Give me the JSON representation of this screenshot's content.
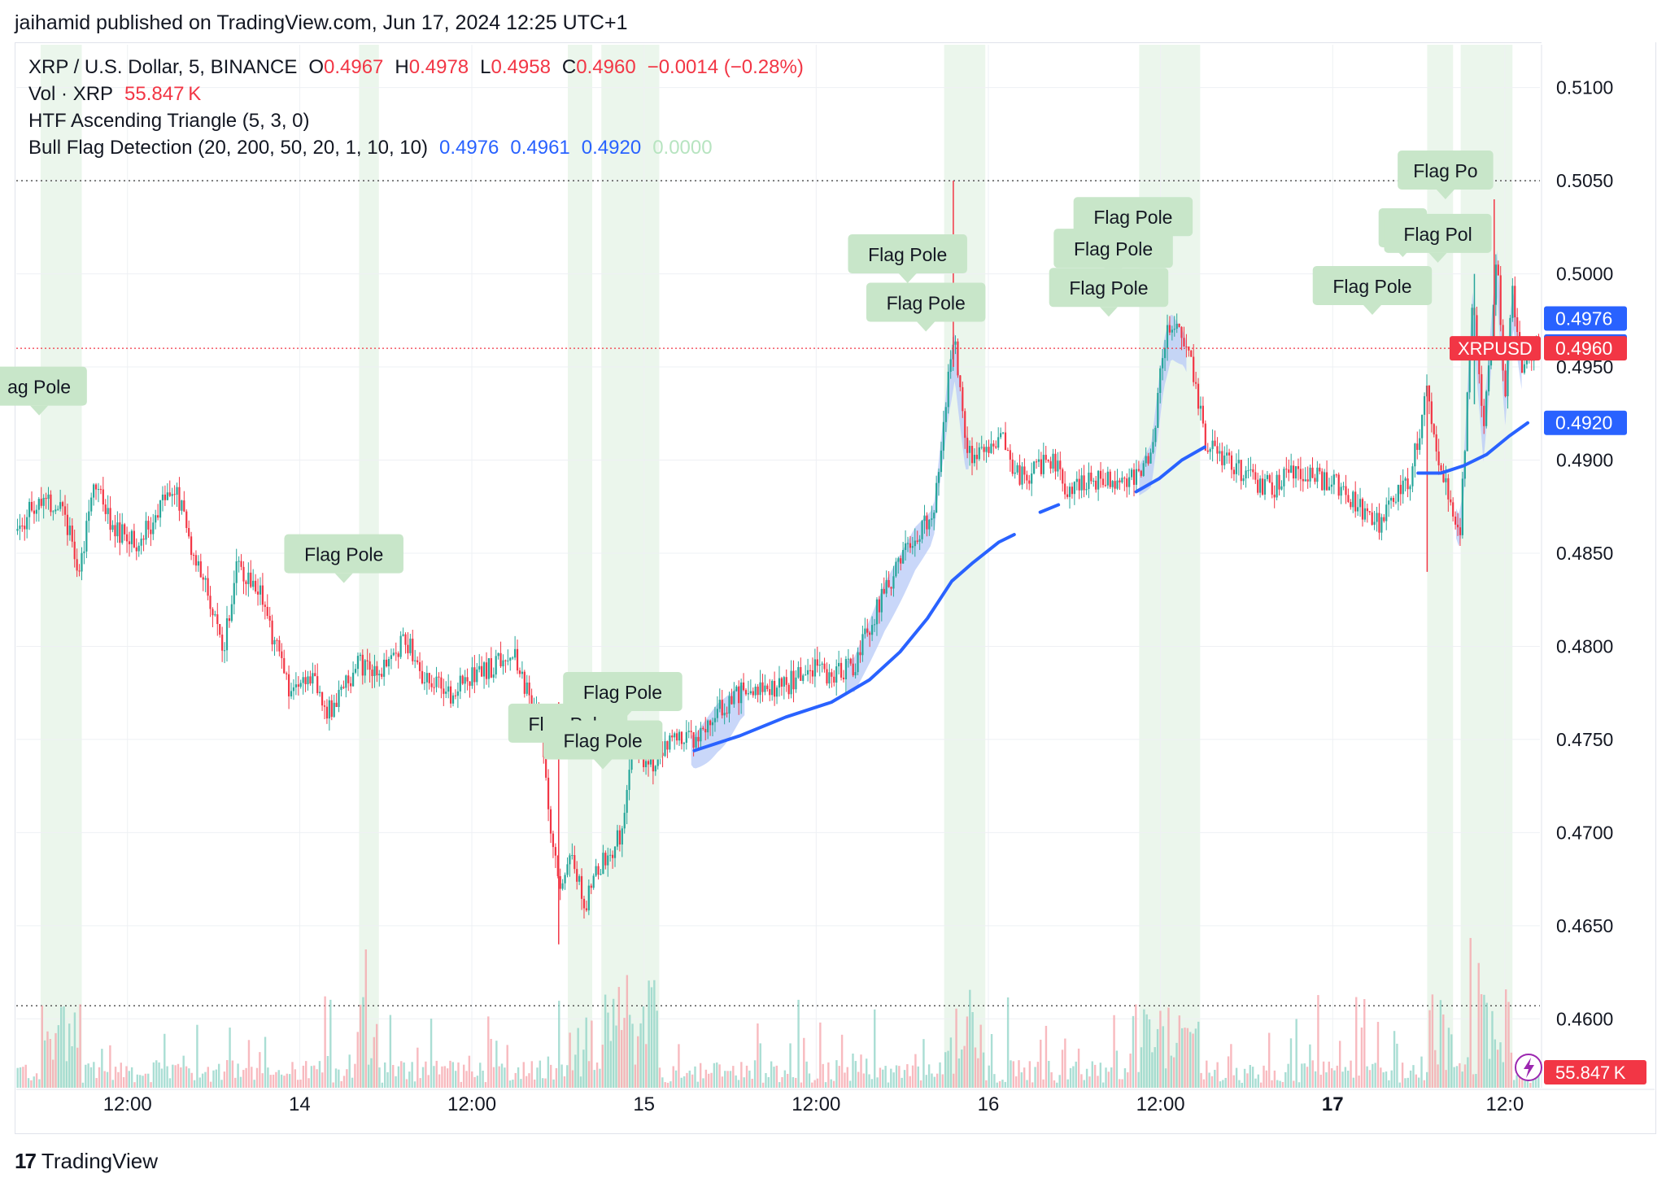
{
  "header": {
    "publish_line": "jaihamid published on TradingView.com, Jun 17, 2024 12:25 UTC+1"
  },
  "legend": {
    "symbol": "XRP / U.S. Dollar, 5, BINANCE",
    "o_label": "O",
    "o_value": "0.4967",
    "h_label": "H",
    "h_value": "0.4978",
    "l_label": "L",
    "l_value": "0.4958",
    "c_label": "C",
    "c_value": "0.4960",
    "change": "−0.0014 (−0.28%)",
    "vol_label": "Vol · XRP",
    "vol_value": "55.847 K",
    "indicator1": "HTF Ascending Triangle (5, 3, 0)",
    "indicator2": "Bull Flag Detection (20, 200, 50, 20, 1, 10, 10)",
    "ind2_v1": "0.4976",
    "ind2_v2": "0.4961",
    "ind2_v3": "0.4920",
    "ind2_v4": "0.0000"
  },
  "footer": {
    "brand": "TradingView",
    "brand_mark": "17"
  },
  "colors": {
    "up": "#26a69a",
    "down": "#f23645",
    "ma": "#2962ff",
    "zone": "#e8f5e9",
    "label": "#c8e6c9",
    "fill": "#bbcdf7"
  },
  "chart_data": {
    "type": "candlestick",
    "symbol": "XRPUSD",
    "interval": "5",
    "y_ticks": [
      0.46,
      0.465,
      0.47,
      0.475,
      0.48,
      0.485,
      0.49,
      0.495,
      0.5,
      0.505,
      0.51
    ],
    "y_tick_labels": [
      "0.4600",
      "0.4650",
      "0.4700",
      "0.4750",
      "0.4800",
      "0.4850",
      "0.4900",
      "0.4950",
      "0.5000",
      "0.5050",
      "0.5100"
    ],
    "ylim": [
      0.4563,
      0.5123
    ],
    "x_ticks": [
      "12:00",
      "14",
      "12:00",
      "15",
      "12:00",
      "16",
      "12:00",
      "17",
      "12:0"
    ],
    "x_range": [
      0,
      100
    ],
    "x_tick_pos": [
      7.3,
      18.6,
      29.9,
      41.2,
      52.5,
      63.8,
      75.1,
      86.4,
      97.7
    ],
    "price_path": [
      [
        0,
        0.4862
      ],
      [
        1.5,
        0.488
      ],
      [
        3,
        0.4875
      ],
      [
        4.2,
        0.484
      ],
      [
        5,
        0.489
      ],
      [
        6.5,
        0.4862
      ],
      [
        8,
        0.4855
      ],
      [
        9.5,
        0.4875
      ],
      [
        10.5,
        0.4885
      ],
      [
        11.5,
        0.485
      ],
      [
        12.5,
        0.4835
      ],
      [
        13.5,
        0.4795
      ],
      [
        14.5,
        0.4845
      ],
      [
        16,
        0.483
      ],
      [
        17,
        0.48
      ],
      [
        18,
        0.4775
      ],
      [
        19.5,
        0.4785
      ],
      [
        20.5,
        0.4765
      ],
      [
        21.5,
        0.478
      ],
      [
        22.5,
        0.479
      ],
      [
        24,
        0.4785
      ],
      [
        25.5,
        0.4805
      ],
      [
        27,
        0.478
      ],
      [
        28.5,
        0.4775
      ],
      [
        30,
        0.4785
      ],
      [
        31.5,
        0.479
      ],
      [
        32.5,
        0.48
      ],
      [
        33.5,
        0.4775
      ],
      [
        34.5,
        0.4755
      ],
      [
        35,
        0.47
      ],
      [
        35.8,
        0.4665
      ],
      [
        36.5,
        0.469
      ],
      [
        37.3,
        0.466
      ],
      [
        38.2,
        0.468
      ],
      [
        39,
        0.469
      ],
      [
        39.8,
        0.47
      ],
      [
        40.5,
        0.475
      ],
      [
        41.5,
        0.4735
      ],
      [
        42.5,
        0.4745
      ],
      [
        43.5,
        0.475
      ],
      [
        44.5,
        0.4748
      ],
      [
        46,
        0.4765
      ],
      [
        47.5,
        0.4775
      ],
      [
        49,
        0.4775
      ],
      [
        50.5,
        0.4778
      ],
      [
        52,
        0.479
      ],
      [
        53.5,
        0.4785
      ],
      [
        55,
        0.479
      ],
      [
        56,
        0.481
      ],
      [
        57,
        0.483
      ],
      [
        58,
        0.4845
      ],
      [
        59,
        0.486
      ],
      [
        60.2,
        0.487
      ],
      [
        61.2,
        0.4945
      ],
      [
        61.6,
        0.4965
      ],
      [
        62.3,
        0.491
      ],
      [
        63,
        0.49
      ],
      [
        63.8,
        0.4905
      ],
      [
        64.8,
        0.491
      ],
      [
        65.8,
        0.489
      ],
      [
        67,
        0.4895
      ],
      [
        68,
        0.49
      ],
      [
        69,
        0.4885
      ],
      [
        70.5,
        0.489
      ],
      [
        72,
        0.489
      ],
      [
        73.5,
        0.489
      ],
      [
        74.5,
        0.4905
      ],
      [
        75.3,
        0.496
      ],
      [
        75.8,
        0.4975
      ],
      [
        76.6,
        0.4965
      ],
      [
        77.3,
        0.4945
      ],
      [
        78,
        0.491
      ],
      [
        79.5,
        0.49
      ],
      [
        81,
        0.489
      ],
      [
        82.5,
        0.4885
      ],
      [
        84,
        0.4895
      ],
      [
        85.5,
        0.489
      ],
      [
        87,
        0.4885
      ],
      [
        88,
        0.4875
      ],
      [
        89.5,
        0.4865
      ],
      [
        90.5,
        0.488
      ],
      [
        91.5,
        0.489
      ],
      [
        92.6,
        0.494
      ],
      [
        93.3,
        0.49
      ],
      [
        94.2,
        0.4875
      ],
      [
        94.8,
        0.4865
      ],
      [
        95.6,
        0.499
      ],
      [
        96.3,
        0.492
      ],
      [
        97.2,
        0.501
      ],
      [
        97.7,
        0.4935
      ],
      [
        98.2,
        0.499
      ],
      [
        98.8,
        0.495
      ],
      [
        99.3,
        0.4955
      ],
      [
        100,
        0.496
      ]
    ],
    "highlight_zones": [
      [
        1.6,
        4.3
      ],
      [
        22.5,
        23.8
      ],
      [
        36.2,
        37.8
      ],
      [
        38.4,
        42.2
      ],
      [
        60.9,
        63.6
      ],
      [
        73.7,
        77.7
      ],
      [
        92.6,
        94.3
      ],
      [
        94.8,
        98.2
      ]
    ],
    "ma_series": [
      [
        44.5,
        0.4744
      ],
      [
        47.5,
        0.4752
      ],
      [
        50.5,
        0.4762
      ],
      [
        53.5,
        0.477
      ],
      [
        56,
        0.4782
      ],
      [
        58,
        0.4797
      ],
      [
        59.8,
        0.4815
      ],
      [
        61.4,
        0.4835
      ],
      [
        62.8,
        0.4845
      ],
      [
        64.5,
        0.4856
      ],
      [
        65.5,
        0.486
      ],
      null,
      [
        67.2,
        0.4872
      ],
      [
        68.4,
        0.4876
      ],
      null,
      [
        73.5,
        0.4883
      ],
      [
        75,
        0.489
      ],
      [
        76.5,
        0.49
      ],
      [
        78,
        0.4907
      ],
      null,
      [
        92,
        0.4893
      ],
      [
        93.5,
        0.4893
      ],
      [
        95,
        0.4897
      ],
      [
        96.5,
        0.4903
      ],
      [
        98,
        0.4913
      ],
      [
        99.2,
        0.492
      ]
    ],
    "flag_labels": [
      {
        "text": "ag Pole",
        "x": 1.5,
        "y": 0.4924
      },
      {
        "text": "Flag Pole",
        "x": 21.5,
        "y": 0.4834
      },
      {
        "text": "Flag Pole",
        "x": 39.8,
        "y": 0.476
      },
      {
        "text": "Flag Pole",
        "x": 36.2,
        "y": 0.4743
      },
      {
        "text": "Flag Pole",
        "x": 38.5,
        "y": 0.4734
      },
      {
        "text": "Flag Pole",
        "x": 58.5,
        "y": 0.4995
      },
      {
        "text": "Flag Pole",
        "x": 59.7,
        "y": 0.4969
      },
      {
        "text": "Flag Pole",
        "x": 73.3,
        "y": 0.5015
      },
      {
        "text": "Flag Pole",
        "x": 72,
        "y": 0.4998
      },
      {
        "text": "Flag Pole",
        "x": 71.7,
        "y": 0.4977
      },
      {
        "text": "Flag Pole",
        "x": 89,
        "y": 0.4978
      },
      {
        "text": "Fla",
        "x": 91,
        "y": 0.5009
      },
      {
        "text": "Flag Pol",
        "x": 93.3,
        "y": 0.5006
      },
      {
        "text": "Flag Po",
        "x": 93.8,
        "y": 0.504
      }
    ],
    "price_tags": [
      {
        "value": 0.4976,
        "label": "0.4976",
        "color": "#2962ff"
      },
      {
        "value": 0.4961,
        "label": "0.4961",
        "color": "#2962ff"
      },
      {
        "value": 0.496,
        "label": "0.4960",
        "color": "#f23645",
        "symbol": "XRPUSD"
      },
      {
        "value": 0.492,
        "label": "0.4920",
        "color": "#2962ff"
      }
    ],
    "volume_tag": "55.847 K",
    "last_price": 0.496,
    "dotted_lines": [
      0.505,
      0.4607
    ]
  }
}
